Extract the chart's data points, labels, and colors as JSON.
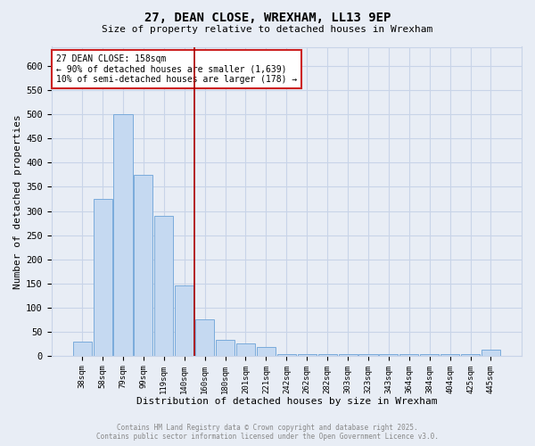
{
  "title": "27, DEAN CLOSE, WREXHAM, LL13 9EP",
  "subtitle": "Size of property relative to detached houses in Wrexham",
  "xlabel": "Distribution of detached houses by size in Wrexham",
  "ylabel": "Number of detached properties",
  "footer_line1": "Contains HM Land Registry data © Crown copyright and database right 2025.",
  "footer_line2": "Contains public sector information licensed under the Open Government Licence v3.0.",
  "bar_labels": [
    "38sqm",
    "58sqm",
    "79sqm",
    "99sqm",
    "119sqm",
    "140sqm",
    "160sqm",
    "180sqm",
    "201sqm",
    "221sqm",
    "242sqm",
    "262sqm",
    "282sqm",
    "303sqm",
    "323sqm",
    "343sqm",
    "364sqm",
    "384sqm",
    "404sqm",
    "425sqm",
    "445sqm"
  ],
  "bar_values": [
    30,
    325,
    500,
    375,
    290,
    145,
    75,
    33,
    25,
    18,
    4,
    4,
    4,
    4,
    4,
    4,
    4,
    4,
    4,
    4,
    12
  ],
  "bar_color": "#c5d9f1",
  "bar_edge_color": "#7aabdb",
  "grid_color": "#c8d4e8",
  "background_color": "#e8edf5",
  "vline_color": "#aa0000",
  "vline_index": 6,
  "annotation_text": "27 DEAN CLOSE: 158sqm\n← 90% of detached houses are smaller (1,639)\n10% of semi-detached houses are larger (178) →",
  "annotation_box_color": "white",
  "annotation_box_edge_color": "#cc2222",
  "ylim": [
    0,
    640
  ],
  "yticks": [
    0,
    50,
    100,
    150,
    200,
    250,
    300,
    350,
    400,
    450,
    500,
    550,
    600
  ]
}
